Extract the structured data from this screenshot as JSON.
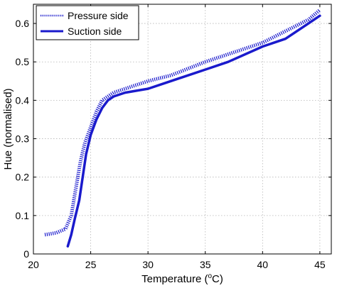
{
  "chart_data": {
    "type": "line",
    "xlabel": "Temperature (",
    "xlabel_sup": "o",
    "xlabel_tail": "C)",
    "ylabel": "Hue (normalised)",
    "xlim": [
      20,
      46
    ],
    "ylim": [
      0,
      0.65
    ],
    "x_ticks": [
      "20",
      "25",
      "30",
      "35",
      "40",
      "45"
    ],
    "y_ticks": [
      "0",
      "0.1",
      "0.2",
      "0.3",
      "0.4",
      "0.5",
      "0.6"
    ],
    "grid": true,
    "legend_position": "top-left",
    "series": [
      {
        "name": "Pressure side",
        "style": "dotted",
        "color": "#1a1acc",
        "x": [
          21,
          22,
          22.8,
          23.3,
          23.7,
          24.1,
          24.5,
          25,
          25.5,
          26,
          26.5,
          27,
          28,
          30,
          32,
          35,
          37,
          40,
          42,
          44,
          45
        ],
        "y": [
          0.05,
          0.055,
          0.065,
          0.1,
          0.17,
          0.24,
          0.29,
          0.33,
          0.37,
          0.4,
          0.41,
          0.42,
          0.43,
          0.45,
          0.465,
          0.5,
          0.52,
          0.55,
          0.58,
          0.61,
          0.635
        ]
      },
      {
        "name": "Suction side",
        "style": "solid",
        "color": "#1a1acc",
        "x": [
          23,
          23.3,
          23.6,
          24,
          24.3,
          24.6,
          25,
          25.5,
          26,
          26.5,
          27,
          28,
          30,
          32,
          35,
          37,
          40,
          42,
          44,
          45
        ],
        "y": [
          0.02,
          0.05,
          0.09,
          0.14,
          0.2,
          0.26,
          0.31,
          0.35,
          0.38,
          0.4,
          0.41,
          0.42,
          0.43,
          0.45,
          0.48,
          0.5,
          0.54,
          0.56,
          0.6,
          0.62
        ]
      }
    ]
  }
}
